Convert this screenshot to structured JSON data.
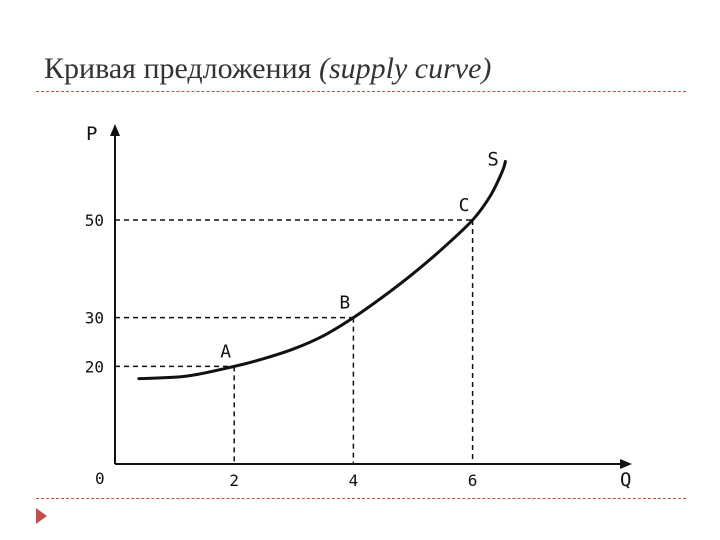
{
  "slide": {
    "title_main": "Кривая предложения",
    "title_sub": "(supply curve)"
  },
  "colors": {
    "accent": "#c0504d",
    "ink": "#111111"
  },
  "chart_data": {
    "type": "line",
    "xlabel": "Q",
    "ylabel": "P",
    "origin_label": "0",
    "xlim": [
      0,
      8.2
    ],
    "ylim": [
      0,
      60
    ],
    "x_ticks": [
      2,
      4,
      6
    ],
    "y_ticks": [
      20,
      30,
      50
    ],
    "series": [
      {
        "name": "S",
        "points": [
          [
            0.4,
            17.5
          ],
          [
            1.2,
            18.0
          ],
          [
            2.0,
            20.0
          ],
          [
            2.5,
            21.6
          ],
          [
            3.0,
            23.6
          ],
          [
            3.5,
            26.3
          ],
          [
            4.0,
            30.0
          ],
          [
            4.5,
            34.3
          ],
          [
            5.0,
            39.0
          ],
          [
            5.5,
            44.2
          ],
          [
            6.0,
            50.0
          ],
          [
            6.3,
            55.0
          ],
          [
            6.5,
            60.0
          ],
          [
            6.55,
            62.0
          ]
        ]
      }
    ],
    "annotations": [
      {
        "label": "A",
        "x": 2,
        "y": 20
      },
      {
        "label": "B",
        "x": 4,
        "y": 30
      },
      {
        "label": "C",
        "x": 6,
        "y": 50
      }
    ]
  }
}
